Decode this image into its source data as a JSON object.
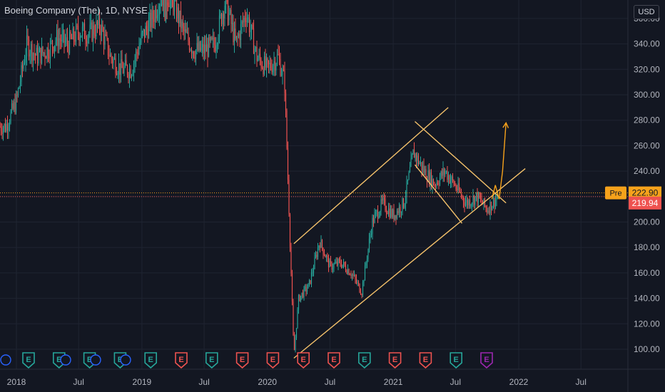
{
  "chart_title": "Boeing Company (The), 1D, NYSE",
  "currency_button": "USD",
  "pre_label": "Pre",
  "pre_price": "222.90",
  "last_price": "219.94",
  "colors": {
    "background": "#131722",
    "up": "#26a69a",
    "down": "#ef5350",
    "pattern": "#f5c26b",
    "projection": "#f7a21b",
    "pre_badge": "#f7a21b",
    "last_badge": "#ef5350",
    "earnings_teal": "#26a69a",
    "earnings_red": "#ef5350",
    "earnings_purple": "#9c27b0"
  },
  "earnings_markers": [
    {
      "label": "E",
      "color": "teal"
    },
    {
      "label": "E",
      "color": "teal"
    },
    {
      "label": "E",
      "color": "teal"
    },
    {
      "label": "E",
      "color": "teal"
    },
    {
      "label": "E",
      "color": "teal"
    },
    {
      "label": "E",
      "color": "red"
    },
    {
      "label": "E",
      "color": "teal"
    },
    {
      "label": "E",
      "color": "red"
    },
    {
      "label": "E",
      "color": "red"
    },
    {
      "label": "E",
      "color": "red"
    },
    {
      "label": "E",
      "color": "red"
    },
    {
      "label": "E",
      "color": "teal"
    },
    {
      "label": "E",
      "color": "red"
    },
    {
      "label": "E",
      "color": "red"
    },
    {
      "label": "E",
      "color": "teal"
    },
    {
      "label": "E",
      "color": "purple"
    }
  ],
  "chart_data": {
    "type": "candlestick",
    "title": "Boeing Company (The), 1D, NYSE",
    "y_tick_labels": [
      "100.00",
      "120.00",
      "140.00",
      "160.00",
      "180.00",
      "200.00",
      "220.00",
      "240.00",
      "260.00",
      "280.00",
      "300.00",
      "320.00",
      "340.00",
      "360.00"
    ],
    "x_tick_labels": [
      "2018",
      "Jul",
      "2019",
      "Jul",
      "2020",
      "Jul",
      "2021",
      "Jul",
      "2022",
      "Jul"
    ],
    "ylim": [
      90,
      365
    ],
    "grid": true,
    "price_path": [
      [
        "2017-12",
        275
      ],
      [
        "2018-01",
        295
      ],
      [
        "2018-02",
        340
      ],
      [
        "2018-03",
        330
      ],
      [
        "2018-04",
        335
      ],
      [
        "2018-05",
        345
      ],
      [
        "2018-06",
        340
      ],
      [
        "2018-07",
        350
      ],
      [
        "2018-08",
        348
      ],
      [
        "2018-09",
        355
      ],
      [
        "2018-10",
        330
      ],
      [
        "2018-11",
        320
      ],
      [
        "2018-12",
        320
      ],
      [
        "2019-01",
        345
      ],
      [
        "2019-02",
        360
      ],
      [
        "2019-03",
        380
      ],
      [
        "2019-04",
        375
      ],
      [
        "2019-05",
        350
      ],
      [
        "2019-06",
        335
      ],
      [
        "2019-07",
        335
      ],
      [
        "2019-08",
        340
      ],
      [
        "2019-09",
        375
      ],
      [
        "2019-10",
        340
      ],
      [
        "2019-11",
        365
      ],
      [
        "2019-12",
        330
      ],
      [
        "2020-01",
        320
      ],
      [
        "2020-02",
        330
      ],
      [
        "2020-02-20",
        310
      ],
      [
        "2020-03-05",
        200
      ],
      [
        "2020-03-18",
        95
      ],
      [
        "2020-04",
        140
      ],
      [
        "2020-05",
        150
      ],
      [
        "2020-06",
        185
      ],
      [
        "2020-07",
        165
      ],
      [
        "2020-08",
        168
      ],
      [
        "2020-09",
        160
      ],
      [
        "2020-10",
        145
      ],
      [
        "2020-11",
        200
      ],
      [
        "2020-12",
        215
      ],
      [
        "2021-01",
        205
      ],
      [
        "2021-02",
        215
      ],
      [
        "2021-03",
        255
      ],
      [
        "2021-04",
        240
      ],
      [
        "2021-05",
        230
      ],
      [
        "2021-06",
        240
      ],
      [
        "2021-07",
        228
      ],
      [
        "2021-08",
        215
      ],
      [
        "2021-09",
        220
      ],
      [
        "2021-10",
        210
      ],
      [
        "2021-11",
        220
      ]
    ],
    "annotations": {
      "ascending_channel_lower": [
        [
          "2020-03-18",
          93
        ],
        [
          "2022-01-20",
          242
        ]
      ],
      "ascending_channel_upper": [
        [
          "2020-03-18",
          183
        ],
        [
          "2021-06-10",
          290
        ]
      ],
      "descending_channel_upper": [
        [
          "2021-03-05",
          279
        ],
        [
          "2021-11-25",
          215
        ]
      ],
      "descending_channel_lower": [
        [
          "2021-03-05",
          245
        ],
        [
          "2021-07-20",
          199
        ]
      ],
      "projection_path": [
        [
          "2021-10-15",
          218
        ],
        [
          "2021-10-25",
          229
        ],
        [
          "2021-11-05",
          218
        ],
        [
          "2021-11-15",
          240
        ],
        [
          "2021-11-25",
          278
        ]
      ]
    }
  }
}
